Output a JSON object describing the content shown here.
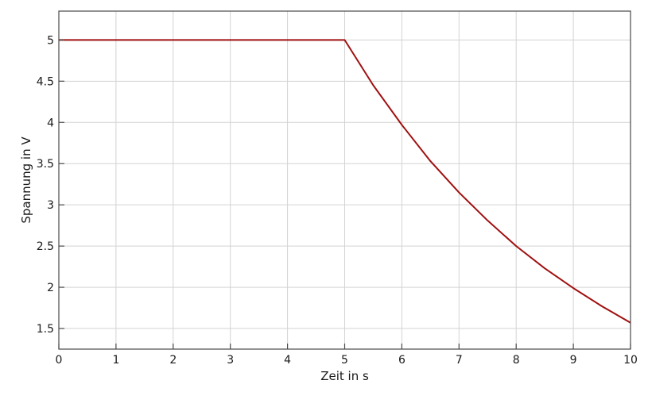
{
  "chart_data": {
    "type": "line",
    "title": "",
    "xlabel": "Zeit in s",
    "ylabel": "Spannung in V",
    "xlim": [
      0,
      10
    ],
    "ylim": [
      1.25,
      5.35
    ],
    "grid": true,
    "x_ticks": [
      "0",
      "1",
      "2",
      "3",
      "4",
      "5",
      "6",
      "7",
      "8",
      "9",
      "10"
    ],
    "y_ticks": [
      "1.5",
      "2",
      "2.5",
      "3",
      "3.5",
      "4",
      "4.5",
      "5"
    ],
    "series": [
      {
        "color": "#a01010",
        "x": [
          0,
          0.5,
          1,
          1.5,
          2,
          2.5,
          3,
          3.5,
          4,
          4.5,
          5,
          5.5,
          6,
          6.5,
          7,
          7.5,
          8,
          8.5,
          9,
          9.5,
          10
        ],
        "y": [
          5,
          5,
          5,
          5,
          5,
          5,
          5,
          5,
          5,
          5,
          5,
          4.45,
          3.97,
          3.53,
          3.15,
          2.81,
          2.5,
          2.23,
          1.99,
          1.77,
          1.57
        ]
      }
    ]
  }
}
